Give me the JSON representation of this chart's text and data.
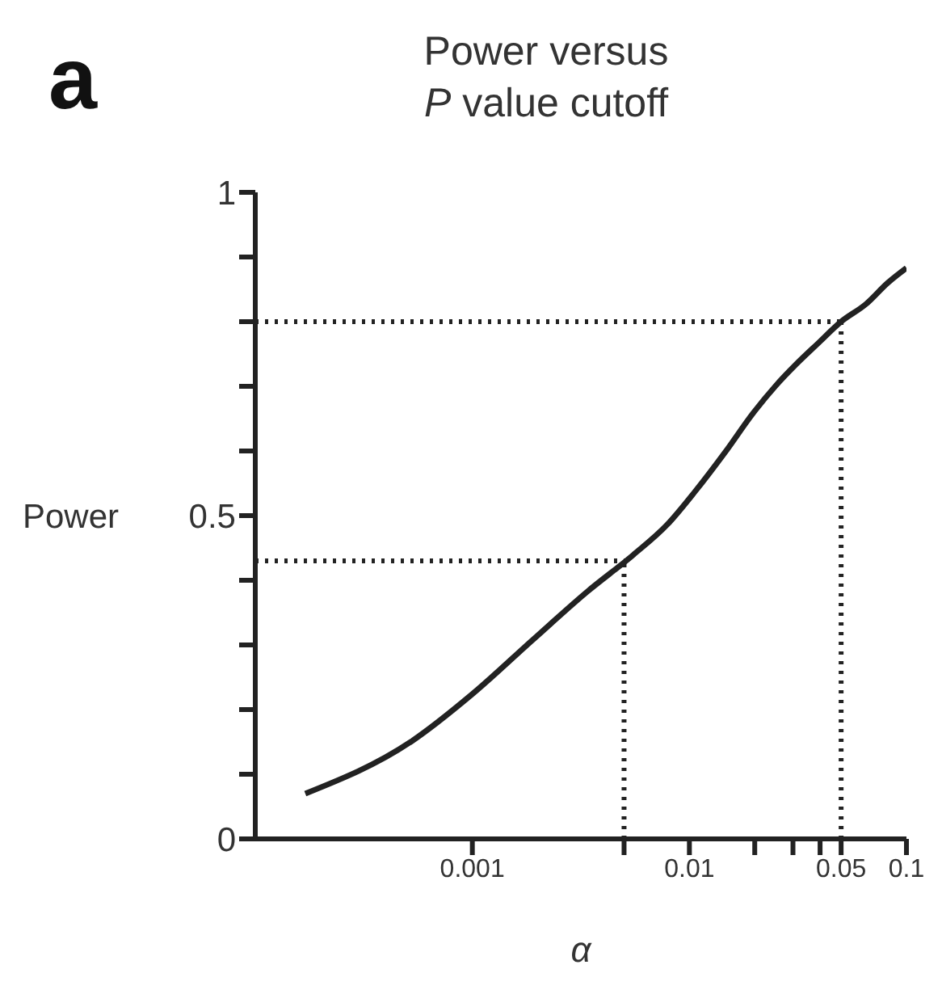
{
  "chart_data": {
    "type": "line",
    "title": "Power versus P value cutoff",
    "xlabel": "α",
    "ylabel": "Power",
    "annotations": [
      "a"
    ],
    "x": [
      0.00017,
      0.00052,
      0.001,
      0.0019,
      0.0034,
      0.0055,
      0.0079,
      0.0106,
      0.0146,
      0.0197,
      0.025,
      0.031,
      0.039,
      0.05,
      0.065,
      0.082,
      0.1
    ],
    "series": [
      {
        "color": "#222222",
        "values": [
          0.07,
          0.15,
          0.224,
          0.308,
          0.383,
          0.439,
          0.486,
          0.537,
          0.598,
          0.659,
          0.701,
          0.734,
          0.766,
          0.8,
          0.827,
          0.86,
          0.883
        ]
      }
    ],
    "log": "x",
    "xlim": [
      0.0001,
      0.1
    ],
    "xticks": [
      0.001,
      {
        "value": 0.005,
        "label": null
      },
      0.01,
      {
        "value": 0.02,
        "label": null
      },
      {
        "value": 0.03,
        "label": null
      },
      {
        "value": 0.04,
        "label": null
      },
      0.05,
      0.1
    ],
    "ylim": [
      0,
      1
    ],
    "yticks": [
      0,
      {
        "value": 0.1,
        "label": null
      },
      {
        "value": 0.2,
        "label": null
      },
      {
        "value": 0.3,
        "label": null
      },
      {
        "value": 0.4,
        "label": null
      },
      0.5,
      {
        "value": 0.6,
        "label": null
      },
      {
        "value": 0.7,
        "label": null
      },
      {
        "value": 0.8,
        "label": null
      },
      {
        "value": 0.9,
        "label": null
      },
      1
    ],
    "ref_lines": [
      {
        "axis": "x",
        "value": 0.005,
        "color": "#222222",
        "line_style": "dotted"
      },
      {
        "axis": "x",
        "value": 0.05,
        "color": "#222222",
        "line_style": "dotted"
      },
      {
        "axis": "y",
        "value": 0.43,
        "color": "#222222",
        "line_style": "dotted"
      },
      {
        "axis": "y",
        "value": 0.8,
        "color": "#222222",
        "line_style": "dotted"
      }
    ],
    "grid": false,
    "legend": false,
    "marker": "none",
    "line_style": "solid"
  }
}
